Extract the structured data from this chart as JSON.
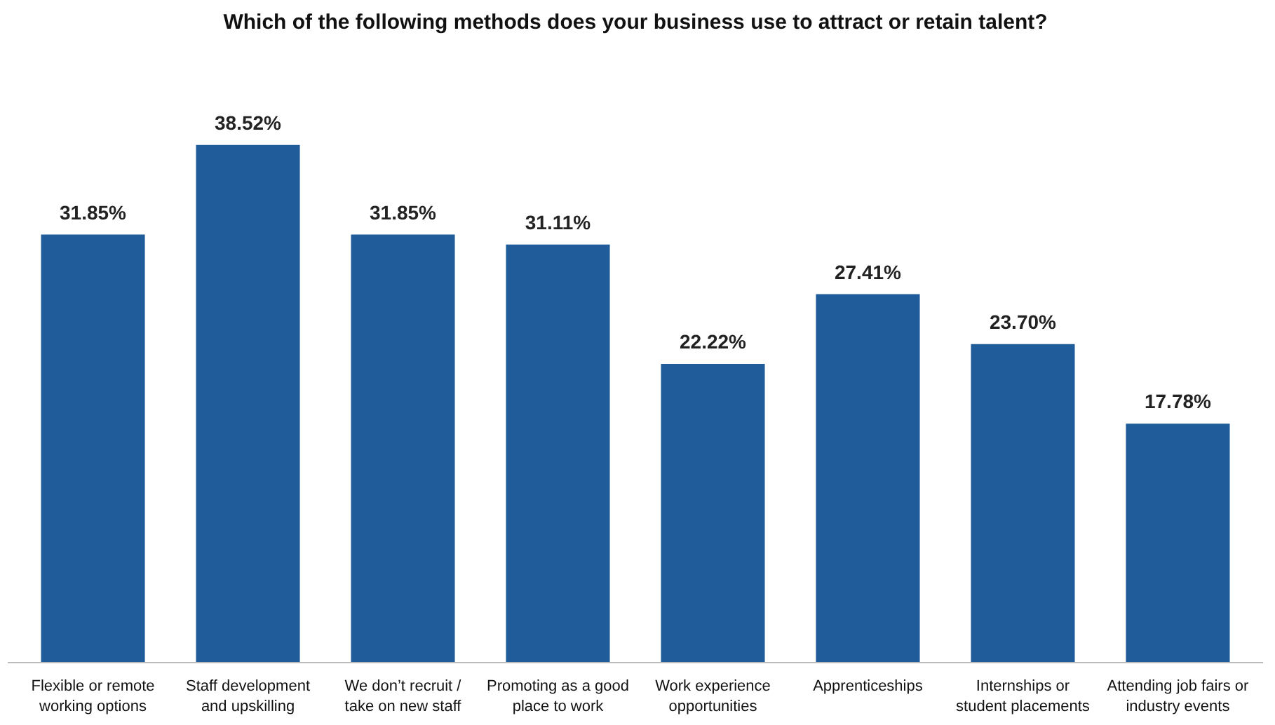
{
  "chart_data": {
    "type": "bar",
    "title": "Which of the following methods does your business use to attract or retain talent?",
    "categories": [
      "Flexible or remote\nworking options",
      "Staff development\nand upskilling",
      "We don’t recruit /\ntake on new staff",
      "Promoting as a good\nplace to work",
      "Work experience\nopportunities",
      "Apprenticeships",
      "Internships or\nstudent placements",
      "Attending job fairs or\nindustry events"
    ],
    "values": [
      31.85,
      38.52,
      31.85,
      31.11,
      22.22,
      27.41,
      23.7,
      17.78
    ],
    "value_labels": [
      "31.85%",
      "38.52%",
      "31.85%",
      "31.11%",
      "22.22%",
      "27.41%",
      "23.70%",
      "17.78%"
    ],
    "color": "#1f5c99",
    "grid": false
  }
}
